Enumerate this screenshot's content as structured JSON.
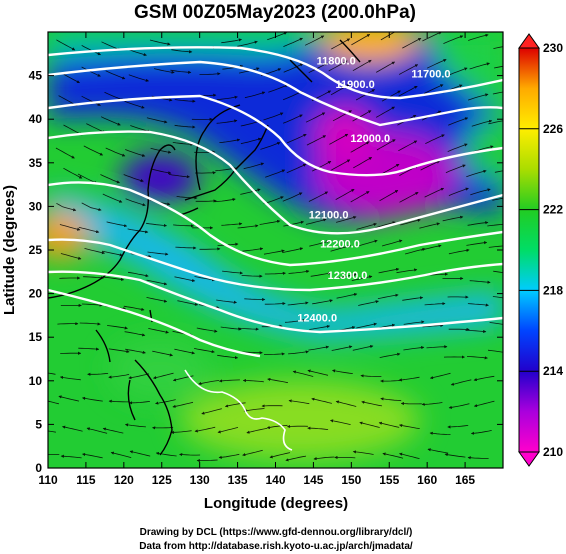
{
  "title": "GSM 00Z05May2023 (200.0hPa)",
  "x_axis": {
    "label": "Longitude (degrees)",
    "range": [
      110,
      170
    ],
    "ticks": [
      "110",
      "115",
      "120",
      "125",
      "130",
      "135",
      "140",
      "145",
      "150",
      "155",
      "160",
      "165"
    ]
  },
  "y_axis": {
    "label": "Latitude (degrees)",
    "range": [
      0,
      50
    ],
    "ticks": [
      "0",
      "5",
      "10",
      "15",
      "20",
      "25",
      "30",
      "35",
      "40",
      "45"
    ]
  },
  "colorbar": {
    "range": [
      210,
      230
    ],
    "tick_labels": [
      "210",
      "214",
      "218",
      "222",
      "226",
      "230"
    ],
    "colors": [
      "#ff00cc",
      "#aa00dd",
      "#2200cc",
      "#0044ff",
      "#00ccff",
      "#00dd66",
      "#22cc22",
      "#aadd00",
      "#ffee00",
      "#ffaa00",
      "#ff4400",
      "#dd0000"
    ]
  },
  "contours": [
    {
      "label": "11700.0",
      "lon": 160.5,
      "lat": 44.8
    },
    {
      "label": "11800.0",
      "lon": 148.0,
      "lat": 46.3
    },
    {
      "label": "11900.0",
      "lon": 150.5,
      "lat": 43.6
    },
    {
      "label": "12000.0",
      "lon": 152.5,
      "lat": 37.4
    },
    {
      "label": "12100.0",
      "lon": 147.0,
      "lat": 28.6
    },
    {
      "label": "12200.0",
      "lon": 148.5,
      "lat": 25.3
    },
    {
      "label": "12300.0",
      "lon": 149.5,
      "lat": 21.7
    },
    {
      "label": "12400.0",
      "lon": 145.5,
      "lat": 16.8
    }
  ],
  "credits": [
    "Drawing by DCL (https://www.gfd-dennou.org/library/dcl/)",
    "Data from http://database.rish.kyoto-u.ac.jp/arch/jmadata/"
  ]
}
